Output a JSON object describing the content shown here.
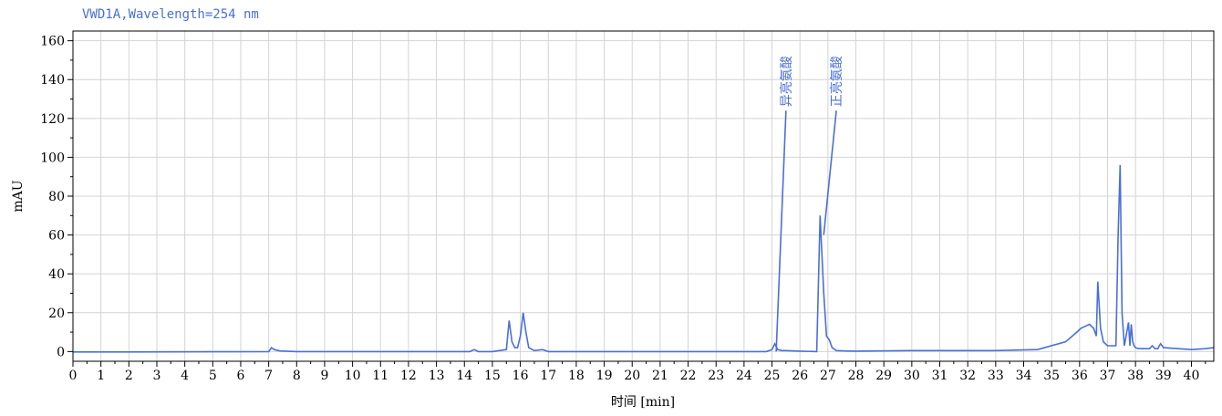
{
  "chart_data": {
    "type": "line",
    "title": "VWD1A,Wavelength=254 nm",
    "xlabel": "时间 [min]",
    "ylabel": "mAU",
    "xlim": [
      0,
      40.8
    ],
    "ylim": [
      -5,
      165
    ],
    "xticks": [
      0,
      1,
      2,
      3,
      4,
      5,
      6,
      7,
      8,
      9,
      10,
      11,
      12,
      13,
      14,
      15,
      16,
      17,
      18,
      19,
      20,
      21,
      22,
      23,
      24,
      25,
      26,
      27,
      28,
      29,
      30,
      31,
      32,
      33,
      34,
      35,
      36,
      37,
      38,
      39,
      40
    ],
    "yticks": [
      0,
      20,
      40,
      60,
      80,
      100,
      120,
      140,
      160
    ],
    "grid": true,
    "line_color": "#4a6fd8",
    "series": [
      {
        "x": [
          0,
          2,
          5,
          7.0,
          7.1,
          7.2,
          7.4,
          8,
          14.2,
          14.35,
          14.5,
          15,
          15.5,
          15.6,
          15.7,
          15.8,
          15.9,
          16.0,
          16.1,
          16.2,
          16.3,
          16.5,
          16.8,
          17,
          24.8,
          25.0,
          25.1,
          25.2,
          25.35,
          25.5,
          26,
          26.6,
          26.72,
          26.85,
          26.95,
          27.05,
          27.15,
          27.3,
          27.6,
          28,
          30,
          33,
          34.5,
          35.5,
          35.9,
          36.05,
          36.2,
          36.35,
          36.5,
          36.6,
          36.65,
          36.75,
          36.85,
          37.0,
          37.3,
          37.38,
          37.45,
          37.52,
          37.6,
          37.75,
          37.8,
          37.85,
          37.9,
          37.95,
          38.0,
          38.1,
          38.5,
          38.6,
          38.7,
          38.8,
          38.85,
          38.9,
          39.0,
          40,
          40.5,
          40.8
        ],
        "y": [
          -0.2,
          -0.2,
          -0.1,
          0,
          2,
          1,
          0.3,
          0,
          0,
          1,
          0,
          0,
          1,
          16,
          5,
          2,
          2,
          8,
          20,
          10,
          2,
          0.5,
          1,
          0,
          0,
          1,
          4,
          1,
          0.5,
          0.5,
          0.2,
          0,
          70,
          30,
          8,
          6,
          2,
          0.5,
          0.3,
          0.2,
          0.5,
          0.5,
          1,
          5,
          10,
          12,
          13,
          14,
          12,
          8,
          36,
          12,
          5,
          3,
          3,
          60,
          96,
          20,
          3,
          15,
          3,
          14,
          5,
          3,
          2,
          1.5,
          1.5,
          3,
          1.5,
          1.5,
          3,
          4,
          2,
          1,
          1.5,
          2
        ]
      }
    ],
    "annotations": [
      {
        "label": "异亮氨酸",
        "x": 25.5,
        "y": 124,
        "line_from_x": 25.15,
        "line_from_y": 0
      },
      {
        "label": "正亮氨酸",
        "x": 27.3,
        "y": 124,
        "line_from_x": 26.85,
        "line_from_y": 60
      }
    ]
  }
}
